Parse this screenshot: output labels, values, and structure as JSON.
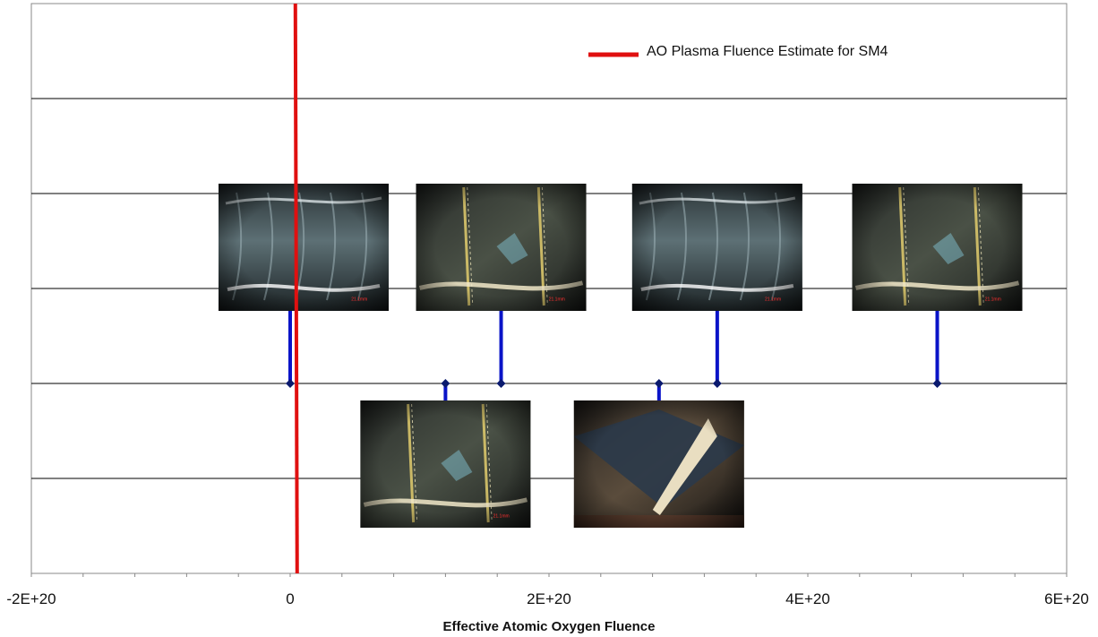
{
  "chart_data": {
    "type": "scatter",
    "title": "",
    "xlabel": "Effective Atomic Oxygen Fluence",
    "ylabel": "",
    "xlim": [
      -2e+20,
      6e+20
    ],
    "ylim": [
      0,
      6
    ],
    "x_tick_labels": [
      "-2E+20",
      "0",
      "2E+20",
      "4E+20",
      "6E+20"
    ],
    "x_tick_values": [
      -2e+20,
      0,
      2e+20,
      4e+20,
      6e+20
    ],
    "grid": "horizontal",
    "legend": {
      "placement": "top-right",
      "entries": [
        {
          "name": "AO Plasma Fluence Estimate for SM4",
          "color": "#e01010"
        }
      ]
    },
    "reference_line": {
      "name": "AO Plasma Fluence Estimate for SM4",
      "x": 4e+18,
      "color": "#e01010"
    },
    "series": [
      {
        "color": "#0a14c8",
        "points": [
          {
            "x": 0,
            "y": 2,
            "photo": "upper"
          },
          {
            "x": 1.2e+20,
            "y": 2,
            "photo": "lower"
          },
          {
            "x": 1.63e+20,
            "y": 2,
            "photo": "upper"
          },
          {
            "x": 2.85e+20,
            "y": 2,
            "photo": "lower"
          },
          {
            "x": 3.3e+20,
            "y": 2,
            "photo": "upper"
          },
          {
            "x": 5e+20,
            "y": 2,
            "photo": "upper"
          }
        ]
      }
    ],
    "photos": [
      {
        "label": "21.1mm",
        "style": "plain"
      },
      {
        "label": "21.1mm",
        "style": "cracked"
      },
      {
        "label": "21.1mm",
        "style": "cracked"
      },
      {
        "label": "",
        "style": "dark"
      },
      {
        "label": "21.1mm",
        "style": "plain"
      },
      {
        "label": "21.1mm",
        "style": "cracked"
      }
    ],
    "colors": {
      "grid": "#000000",
      "axis": "#888888",
      "stem": "#0a14c8",
      "marker": "#0a1a6e",
      "reference": "#e01010"
    }
  }
}
